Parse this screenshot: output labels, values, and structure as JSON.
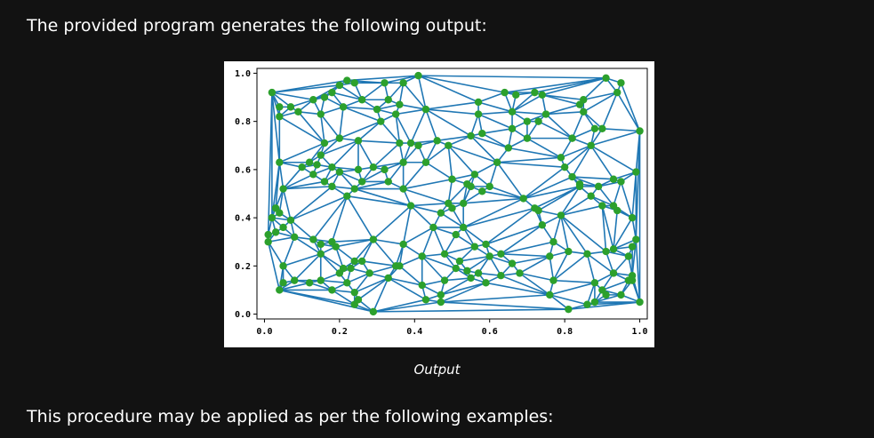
{
  "text": {
    "intro": "The provided program generates the following output:",
    "caption": "Output",
    "outro": "This procedure may be applied as per the following examples:"
  },
  "chart_data": {
    "type": "scatter",
    "title": "",
    "xlabel": "",
    "ylabel": "",
    "xlim": [
      -0.02,
      1.02
    ],
    "ylim": [
      -0.02,
      1.02
    ],
    "xticks": [
      "0.0",
      "0.2",
      "0.4",
      "0.6",
      "0.8",
      "1.0"
    ],
    "yticks": [
      "0.0",
      "0.2",
      "0.4",
      "0.6",
      "0.8",
      "1.0"
    ],
    "grid": false,
    "point_color": "#2ca02c",
    "edge_color": "#1f77b4",
    "points": [
      [
        0.02,
        0.92
      ],
      [
        0.04,
        0.86
      ],
      [
        0.07,
        0.86
      ],
      [
        0.04,
        0.82
      ],
      [
        0.22,
        0.97
      ],
      [
        0.24,
        0.96
      ],
      [
        0.32,
        0.96
      ],
      [
        0.37,
        0.96
      ],
      [
        0.41,
        0.99
      ],
      [
        0.2,
        0.95
      ],
      [
        0.16,
        0.9
      ],
      [
        0.18,
        0.92
      ],
      [
        0.13,
        0.89
      ],
      [
        0.09,
        0.84
      ],
      [
        0.15,
        0.83
      ],
      [
        0.21,
        0.86
      ],
      [
        0.26,
        0.89
      ],
      [
        0.3,
        0.85
      ],
      [
        0.33,
        0.89
      ],
      [
        0.36,
        0.87
      ],
      [
        0.35,
        0.83
      ],
      [
        0.43,
        0.85
      ],
      [
        0.57,
        0.88
      ],
      [
        0.64,
        0.92
      ],
      [
        0.67,
        0.91
      ],
      [
        0.74,
        0.91
      ],
      [
        0.72,
        0.92
      ],
      [
        0.66,
        0.84
      ],
      [
        0.57,
        0.83
      ],
      [
        0.58,
        0.75
      ],
      [
        0.55,
        0.74
      ],
      [
        0.49,
        0.7
      ],
      [
        0.46,
        0.72
      ],
      [
        0.39,
        0.71
      ],
      [
        0.36,
        0.71
      ],
      [
        0.31,
        0.8
      ],
      [
        0.25,
        0.72
      ],
      [
        0.2,
        0.73
      ],
      [
        0.16,
        0.71
      ],
      [
        0.15,
        0.66
      ],
      [
        0.04,
        0.63
      ],
      [
        0.1,
        0.61
      ],
      [
        0.12,
        0.63
      ],
      [
        0.14,
        0.62
      ],
      [
        0.18,
        0.61
      ],
      [
        0.2,
        0.59
      ],
      [
        0.25,
        0.6
      ],
      [
        0.29,
        0.61
      ],
      [
        0.32,
        0.6
      ],
      [
        0.37,
        0.63
      ],
      [
        0.41,
        0.7
      ],
      [
        0.43,
        0.63
      ],
      [
        0.5,
        0.56
      ],
      [
        0.54,
        0.54
      ],
      [
        0.56,
        0.58
      ],
      [
        0.58,
        0.51
      ],
      [
        0.62,
        0.63
      ],
      [
        0.65,
        0.69
      ],
      [
        0.66,
        0.77
      ],
      [
        0.7,
        0.73
      ],
      [
        0.7,
        0.8
      ],
      [
        0.73,
        0.8
      ],
      [
        0.75,
        0.83
      ],
      [
        0.84,
        0.87
      ],
      [
        0.85,
        0.89
      ],
      [
        0.85,
        0.84
      ],
      [
        0.88,
        0.77
      ],
      [
        0.9,
        0.77
      ],
      [
        0.87,
        0.7
      ],
      [
        0.82,
        0.73
      ],
      [
        0.79,
        0.65
      ],
      [
        0.8,
        0.61
      ],
      [
        0.82,
        0.57
      ],
      [
        0.84,
        0.54
      ],
      [
        0.89,
        0.53
      ],
      [
        0.93,
        0.56
      ],
      [
        0.95,
        0.55
      ],
      [
        0.99,
        0.59
      ],
      [
        1.0,
        0.76
      ],
      [
        0.95,
        0.96
      ],
      [
        0.91,
        0.98
      ],
      [
        0.94,
        0.92
      ],
      [
        0.05,
        0.52
      ],
      [
        0.13,
        0.58
      ],
      [
        0.16,
        0.55
      ],
      [
        0.18,
        0.53
      ],
      [
        0.22,
        0.49
      ],
      [
        0.24,
        0.52
      ],
      [
        0.26,
        0.55
      ],
      [
        0.33,
        0.55
      ],
      [
        0.37,
        0.52
      ],
      [
        0.39,
        0.45
      ],
      [
        0.47,
        0.42
      ],
      [
        0.49,
        0.46
      ],
      [
        0.5,
        0.44
      ],
      [
        0.53,
        0.46
      ],
      [
        0.55,
        0.53
      ],
      [
        0.6,
        0.53
      ],
      [
        0.69,
        0.48
      ],
      [
        0.72,
        0.44
      ],
      [
        0.73,
        0.43
      ],
      [
        0.79,
        0.41
      ],
      [
        0.84,
        0.53
      ],
      [
        0.87,
        0.49
      ],
      [
        0.9,
        0.45
      ],
      [
        0.93,
        0.45
      ],
      [
        0.94,
        0.43
      ],
      [
        0.98,
        0.4
      ],
      [
        0.02,
        0.4
      ],
      [
        0.03,
        0.44
      ],
      [
        0.04,
        0.42
      ],
      [
        0.07,
        0.39
      ],
      [
        0.08,
        0.32
      ],
      [
        0.01,
        0.33
      ],
      [
        0.01,
        0.3
      ],
      [
        0.03,
        0.34
      ],
      [
        0.05,
        0.36
      ],
      [
        0.13,
        0.31
      ],
      [
        0.15,
        0.29
      ],
      [
        0.18,
        0.3
      ],
      [
        0.19,
        0.28
      ],
      [
        0.15,
        0.25
      ],
      [
        0.29,
        0.31
      ],
      [
        0.37,
        0.29
      ],
      [
        0.45,
        0.36
      ],
      [
        0.51,
        0.33
      ],
      [
        0.53,
        0.36
      ],
      [
        0.56,
        0.28
      ],
      [
        0.59,
        0.29
      ],
      [
        0.6,
        0.24
      ],
      [
        0.63,
        0.25
      ],
      [
        0.74,
        0.37
      ],
      [
        0.77,
        0.3
      ],
      [
        0.76,
        0.24
      ],
      [
        0.81,
        0.26
      ],
      [
        0.86,
        0.25
      ],
      [
        0.91,
        0.26
      ],
      [
        0.93,
        0.27
      ],
      [
        0.97,
        0.24
      ],
      [
        0.98,
        0.16
      ],
      [
        0.98,
        0.14
      ],
      [
        0.93,
        0.17
      ],
      [
        0.88,
        0.13
      ],
      [
        0.91,
        0.08
      ],
      [
        0.86,
        0.04
      ],
      [
        0.81,
        0.02
      ],
      [
        0.76,
        0.08
      ],
      [
        0.68,
        0.17
      ],
      [
        0.63,
        0.16
      ],
      [
        0.59,
        0.13
      ],
      [
        0.55,
        0.15
      ],
      [
        0.54,
        0.18
      ],
      [
        0.51,
        0.19
      ],
      [
        0.52,
        0.22
      ],
      [
        0.48,
        0.25
      ],
      [
        0.42,
        0.24
      ],
      [
        0.36,
        0.2
      ],
      [
        0.28,
        0.17
      ],
      [
        0.26,
        0.22
      ],
      [
        0.24,
        0.22
      ],
      [
        0.23,
        0.19
      ],
      [
        0.21,
        0.19
      ],
      [
        0.2,
        0.17
      ],
      [
        0.22,
        0.13
      ],
      [
        0.24,
        0.09
      ],
      [
        0.25,
        0.06
      ],
      [
        0.24,
        0.04
      ],
      [
        0.29,
        0.01
      ],
      [
        0.18,
        0.1
      ],
      [
        0.15,
        0.14
      ],
      [
        0.12,
        0.13
      ],
      [
        0.08,
        0.14
      ],
      [
        0.05,
        0.13
      ],
      [
        0.05,
        0.2
      ],
      [
        0.04,
        0.1
      ],
      [
        0.42,
        0.12
      ],
      [
        0.47,
        0.05
      ],
      [
        0.47,
        0.08
      ],
      [
        0.43,
        0.06
      ],
      [
        0.33,
        0.15
      ],
      [
        0.35,
        0.2
      ],
      [
        0.48,
        0.14
      ],
      [
        0.57,
        0.17
      ],
      [
        0.66,
        0.21
      ],
      [
        0.77,
        0.14
      ],
      [
        0.88,
        0.05
      ],
      [
        0.9,
        0.1
      ],
      [
        1.0,
        0.05
      ],
      [
        0.97,
        0.14
      ],
      [
        0.95,
        0.08
      ],
      [
        0.98,
        0.28
      ],
      [
        0.99,
        0.31
      ]
    ]
  }
}
